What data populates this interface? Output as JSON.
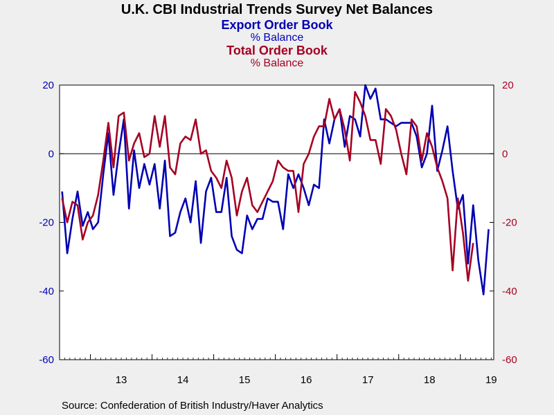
{
  "title": "U.K. CBI Industrial Trends Survey Net Balances",
  "series_titles": [
    {
      "name": "Export Order Book",
      "unit": "% Balance",
      "color": "#0000b3"
    },
    {
      "name": "Total Order Book",
      "unit": "% Balance",
      "color": "#a50021"
    }
  ],
  "source": "Source:  Confederation of British Industry/Haver Analytics",
  "chart_data": {
    "type": "line",
    "frequency": "monthly",
    "x_start": "2012-07",
    "x_tick_labels": [
      "13",
      "14",
      "15",
      "16",
      "17",
      "18",
      "19"
    ],
    "left_axis": {
      "ylim": [
        -60,
        20
      ],
      "ticks": [
        20,
        0,
        -20,
        -40,
        -60
      ],
      "color": "#0000b3"
    },
    "right_axis": {
      "ylim": [
        -60,
        20
      ],
      "ticks": [
        20,
        0,
        -20,
        -40,
        -60
      ],
      "color": "#a50021"
    },
    "zero_line": true,
    "grid": false,
    "series": [
      {
        "name": "Export Order Book",
        "color": "#0000b3",
        "axis": "left",
        "values": [
          -11,
          -29,
          -19,
          -11,
          -21,
          -17,
          -22,
          -20,
          -6,
          6,
          -12,
          0,
          10,
          -16,
          1,
          -10,
          -3,
          -9,
          -3,
          -16,
          -2,
          -24,
          -23,
          -17,
          -13,
          -20,
          -8,
          -26,
          -11,
          -7,
          -17,
          -17,
          -7,
          -24,
          -28,
          -29,
          -18,
          -22,
          -19,
          -19,
          -13,
          -14,
          -14,
          -22,
          -6,
          -10,
          -6,
          -10,
          -15,
          -9,
          -10,
          10,
          3,
          10,
          13,
          2,
          11,
          10,
          5,
          20,
          16,
          19,
          10,
          10,
          9,
          8,
          9,
          9,
          9,
          5,
          -4,
          0,
          14,
          -5,
          1,
          8,
          -5,
          -16,
          -12,
          -32,
          -15,
          -31,
          -41,
          -22
        ]
      },
      {
        "name": "Total Order Book",
        "color": "#a50021",
        "axis": "left",
        "values": [
          -13,
          -20,
          -14,
          -15,
          -25,
          -20,
          -18,
          -12,
          -2,
          9,
          -4,
          11,
          12,
          -2,
          3,
          6,
          -1,
          0,
          11,
          2,
          11,
          -4,
          -6,
          3,
          5,
          4,
          10,
          0,
          1,
          -5,
          -7,
          -10,
          -2,
          -7,
          -18,
          -11,
          -7,
          -15,
          -17,
          -14,
          -11,
          -8,
          -2,
          -4,
          -5,
          -5,
          -17,
          -3,
          0,
          5,
          8,
          8,
          16,
          10,
          13,
          7,
          -2,
          18,
          15,
          11,
          4,
          4,
          -3,
          13,
          11,
          7,
          0,
          -6,
          10,
          8,
          -2,
          6,
          2,
          -4,
          -8,
          -13,
          -34,
          -13,
          -23,
          -37,
          -26
        ]
      }
    ]
  }
}
